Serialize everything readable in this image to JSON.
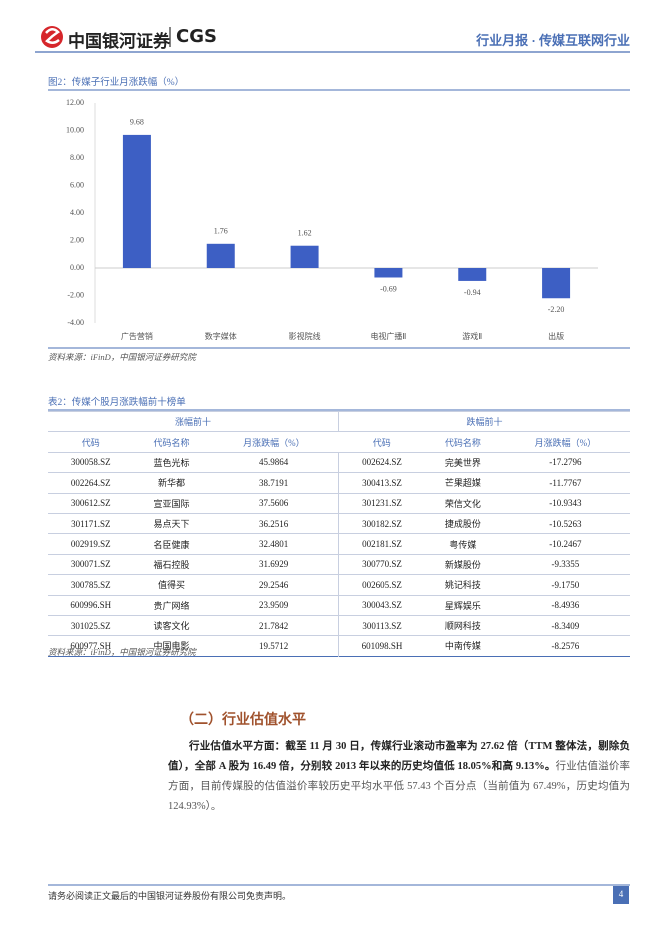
{
  "header": {
    "logo_text": "中国银河证券",
    "logo_en": "CGS",
    "report": "行业月报 · 传媒互联网行业"
  },
  "chart_data": {
    "type": "bar",
    "title": "图2：传媒子行业月涨跌幅（%）",
    "categories": [
      "广告营销",
      "数字媒体",
      "影视院线",
      "电视广播Ⅱ",
      "游戏Ⅱ",
      "出版"
    ],
    "values": [
      9.68,
      1.76,
      1.62,
      -0.69,
      -0.94,
      -2.2
    ],
    "value_labels": [
      "9.68",
      "1.76",
      "1.62",
      "-0.69",
      "-0.94",
      "-2.20"
    ],
    "color": "#3d5fc4",
    "ylim": [
      -4,
      12
    ],
    "yticks": [
      {
        "value": -4,
        "label": "-4.00"
      },
      {
        "value": -2,
        "label": "-2.00"
      },
      {
        "value": 0,
        "label": "0.00"
      },
      {
        "value": 2,
        "label": "2.00"
      },
      {
        "value": 4,
        "label": "4.00"
      },
      {
        "value": 6,
        "label": "6.00"
      },
      {
        "value": 8,
        "label": "8.00"
      },
      {
        "value": 10,
        "label": "10.00"
      },
      {
        "value": 12,
        "label": "12.00"
      }
    ],
    "grid": false,
    "source": "资料来源：iFinD，中国银河证券研究院"
  },
  "table": {
    "title": "表2：传媒个股月涨跌幅前十榜单",
    "groups": [
      "涨幅前十",
      "跌幅前十"
    ],
    "columns": [
      "代码",
      "代码名称",
      "月涨跌幅（%）",
      "代码",
      "代码名称",
      "月涨跌幅（%）"
    ],
    "rows": [
      [
        "300058.SZ",
        "蓝色光标",
        "45.9864",
        "002624.SZ",
        "完美世界",
        "-17.2796"
      ],
      [
        "002264.SZ",
        "新华都",
        "38.7191",
        "300413.SZ",
        "芒果超媒",
        "-11.7767"
      ],
      [
        "300612.SZ",
        "宣亚国际",
        "37.5606",
        "301231.SZ",
        "荣信文化",
        "-10.9343"
      ],
      [
        "301171.SZ",
        "易点天下",
        "36.2516",
        "300182.SZ",
        "捷成股份",
        "-10.5263"
      ],
      [
        "002919.SZ",
        "名臣健康",
        "32.4801",
        "002181.SZ",
        "粤传媒",
        "-10.2467"
      ],
      [
        "300071.SZ",
        "福石控股",
        "31.6929",
        "300770.SZ",
        "新媒股份",
        "-9.3355"
      ],
      [
        "300785.SZ",
        "值得买",
        "29.2546",
        "002605.SZ",
        "姚记科技",
        "-9.1750"
      ],
      [
        "600996.SH",
        "贵广网络",
        "23.9509",
        "300043.SZ",
        "星辉娱乐",
        "-8.4936"
      ],
      [
        "301025.SZ",
        "读客文化",
        "21.7842",
        "300113.SZ",
        "顺网科技",
        "-8.3409"
      ],
      [
        "600977.SH",
        "中国电影",
        "19.5712",
        "601098.SH",
        "中南传媒",
        "-8.2576"
      ]
    ],
    "source": "资料来源：iFinD，中国银河证券研究院"
  },
  "section": {
    "heading": "（二）行业估值水平",
    "bold": "行业估值水平方面：截至 11 月 30 日，传媒行业滚动市盈率为 27.62 倍（TTM 整体法，剔除负值），全部 A 股为 16.49 倍，分别较 2013 年以来的历史均值低 18.05%和高 9.13%。",
    "text": "行业估值溢价率方面，目前传媒股的估值溢价率较历史平均水平低 57.43 个百分点（当前值为 67.49%，历史均值为 124.93%）。"
  },
  "footer": {
    "disclaimer": "请务必阅读正文最后的中国银河证券股份有限公司免责声明。",
    "page": "4"
  }
}
